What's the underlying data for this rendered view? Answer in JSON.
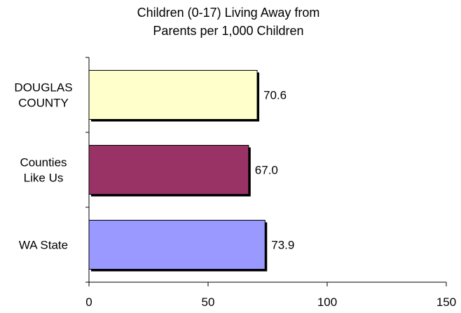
{
  "chart_data": {
    "type": "bar",
    "orientation": "horizontal",
    "title_lines": [
      "Children (0-17) Living Away from",
      "Parents per 1,000 Children"
    ],
    "categories": [
      {
        "lines": [
          "DOUGLAS",
          "COUNTY"
        ],
        "value": 70.6,
        "value_label": "70.6",
        "color": "#FFFFCC"
      },
      {
        "lines": [
          "Counties",
          "Like Us"
        ],
        "value": 67.0,
        "value_label": "67.0",
        "color": "#993366"
      },
      {
        "lines": [
          "WA State"
        ],
        "value": 73.9,
        "value_label": "73.9",
        "color": "#9999FF"
      }
    ],
    "xlim": [
      0,
      150
    ],
    "xticks": [
      0,
      50,
      100,
      150
    ],
    "xtick_labels": [
      "0",
      "50",
      "100",
      "150"
    ],
    "grid": false,
    "legend": "none"
  }
}
